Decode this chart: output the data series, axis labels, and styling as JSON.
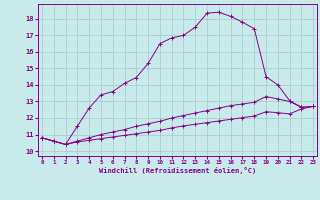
{
  "xlabel": "Windchill (Refroidissement éolien,°C)",
  "background_color": "#c8eaea",
  "grid_color": "#a0c8c8",
  "line_color": "#880088",
  "x_ticks": [
    0,
    1,
    2,
    3,
    4,
    5,
    6,
    7,
    8,
    9,
    10,
    11,
    12,
    13,
    14,
    15,
    16,
    17,
    18,
    19,
    20,
    21,
    22,
    23
  ],
  "y_ticks": [
    10,
    11,
    12,
    13,
    14,
    15,
    16,
    17,
    18
  ],
  "xlim": [
    -0.3,
    23.3
  ],
  "ylim": [
    9.7,
    18.9
  ],
  "series": [
    {
      "x": [
        0,
        1,
        2,
        3,
        4,
        5,
        6,
        7,
        8,
        9,
        10,
        11,
        12,
        13,
        14,
        15,
        16,
        17,
        18,
        19,
        20,
        21,
        22,
        23
      ],
      "y": [
        10.8,
        10.6,
        10.4,
        11.5,
        12.6,
        13.4,
        13.6,
        14.1,
        14.45,
        15.3,
        16.5,
        16.85,
        17.0,
        17.5,
        18.35,
        18.4,
        18.15,
        17.8,
        17.4,
        14.5,
        14.0,
        13.05,
        12.65,
        12.7
      ]
    },
    {
      "x": [
        0,
        1,
        2,
        3,
        4,
        5,
        6,
        7,
        8,
        9,
        10,
        11,
        12,
        13,
        14,
        15,
        16,
        17,
        18,
        19,
        20,
        21,
        22,
        23
      ],
      "y": [
        10.8,
        10.6,
        10.4,
        10.6,
        10.8,
        11.0,
        11.15,
        11.3,
        11.5,
        11.65,
        11.8,
        12.0,
        12.15,
        12.3,
        12.45,
        12.6,
        12.75,
        12.85,
        12.95,
        13.3,
        13.15,
        13.0,
        12.65,
        12.7
      ]
    },
    {
      "x": [
        0,
        1,
        2,
        3,
        4,
        5,
        6,
        7,
        8,
        9,
        10,
        11,
        12,
        13,
        14,
        15,
        16,
        17,
        18,
        19,
        20,
        21,
        22,
        23
      ],
      "y": [
        10.8,
        10.6,
        10.4,
        10.55,
        10.65,
        10.75,
        10.85,
        10.95,
        11.05,
        11.15,
        11.25,
        11.4,
        11.52,
        11.62,
        11.72,
        11.82,
        11.92,
        12.02,
        12.12,
        12.38,
        12.32,
        12.25,
        12.55,
        12.7
      ]
    }
  ]
}
